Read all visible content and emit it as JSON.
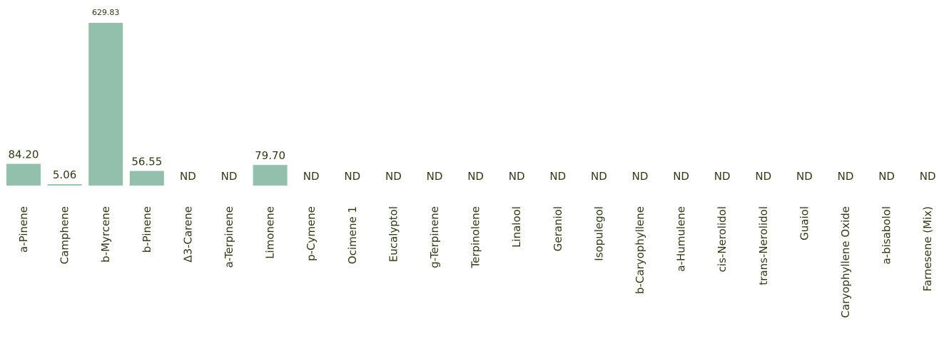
{
  "chart_data": {
    "type": "bar",
    "categories": [
      "a-Pinene",
      "Camphene",
      "b-Myrcene",
      "b-Pinene",
      "Δ3-Carene",
      "a-Terpinene",
      "Limonene",
      "p-Cymene",
      "Ocimene 1",
      "Eucalyptol",
      "g-Terpinene",
      "Terpinolene",
      "Linalool",
      "Geraniol",
      "Isopulegol",
      "b-Caryophyllene",
      "a-Humulene",
      "cis-Nerolidol",
      "trans-Nerolidol",
      "Guaiol",
      "Caryophyllene Oxide",
      "a-bisabolol",
      "Farnesene (Mix)"
    ],
    "values": [
      84.2,
      5.06,
      629.83,
      56.55,
      null,
      null,
      79.7,
      null,
      null,
      null,
      null,
      null,
      null,
      null,
      null,
      null,
      null,
      null,
      null,
      null,
      null,
      null,
      null
    ],
    "value_labels": [
      "84.20",
      "5.06",
      "629.83",
      "56.55",
      "ND",
      "ND",
      "79.70",
      "ND",
      "ND",
      "ND",
      "ND",
      "ND",
      "ND",
      "ND",
      "ND",
      "ND",
      "ND",
      "ND",
      "ND",
      "ND",
      "ND",
      "ND",
      "ND"
    ],
    "ylim": [
      0,
      629.83
    ],
    "grid": false,
    "legend": "none",
    "bar_color": "#93bfad",
    "text_color": "#2f3a14"
  }
}
